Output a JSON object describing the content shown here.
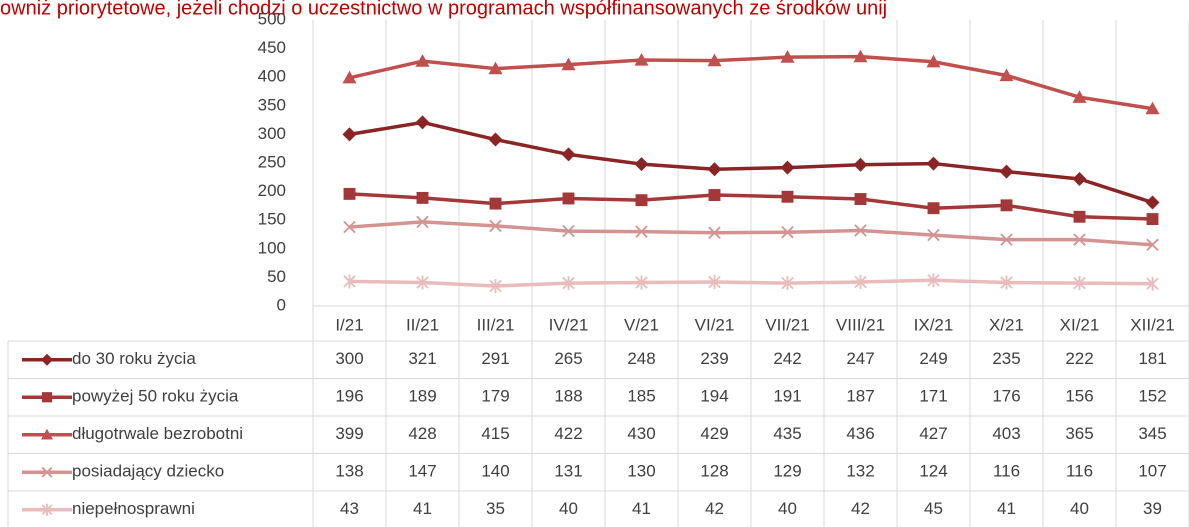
{
  "chart_data": {
    "type": "line",
    "title": "owniż priorytetowe, jeżeli chodzi o uczestnictwo w programach współfinansowanych ze środków unij",
    "categories": [
      "I/21",
      "II/21",
      "III/21",
      "IV/21",
      "V/21",
      "VI/21",
      "VII/21",
      "VIII/21",
      "IX/21",
      "X/21",
      "XI/21",
      "XII/21"
    ],
    "ylim": [
      0,
      500
    ],
    "yticks": [
      0,
      50,
      100,
      150,
      200,
      250,
      300,
      350,
      400,
      450,
      500
    ],
    "data_table": true,
    "series": [
      {
        "name": "do 30 roku życia",
        "color": "#8b2525",
        "marker": "diamond",
        "values": [
          300,
          321,
          291,
          265,
          248,
          239,
          242,
          247,
          249,
          235,
          222,
          181
        ]
      },
      {
        "name": "powyżej 50 roku życia",
        "color": "#a33838",
        "marker": "square",
        "values": [
          196,
          189,
          179,
          188,
          185,
          194,
          191,
          187,
          171,
          176,
          156,
          152
        ]
      },
      {
        "name": "długotrwale bezrobotni",
        "color": "#c0504d",
        "marker": "triangle",
        "values": [
          399,
          428,
          415,
          422,
          430,
          429,
          435,
          436,
          427,
          403,
          365,
          345
        ]
      },
      {
        "name": "posiadający dziecko",
        "color": "#d39391",
        "marker": "x",
        "values": [
          138,
          147,
          140,
          131,
          130,
          128,
          129,
          132,
          124,
          116,
          116,
          107
        ]
      },
      {
        "name": "niepełnosprawni",
        "color": "#e8bcbb",
        "marker": "star",
        "values": [
          43,
          41,
          35,
          40,
          41,
          42,
          40,
          42,
          45,
          41,
          40,
          39
        ]
      }
    ]
  }
}
